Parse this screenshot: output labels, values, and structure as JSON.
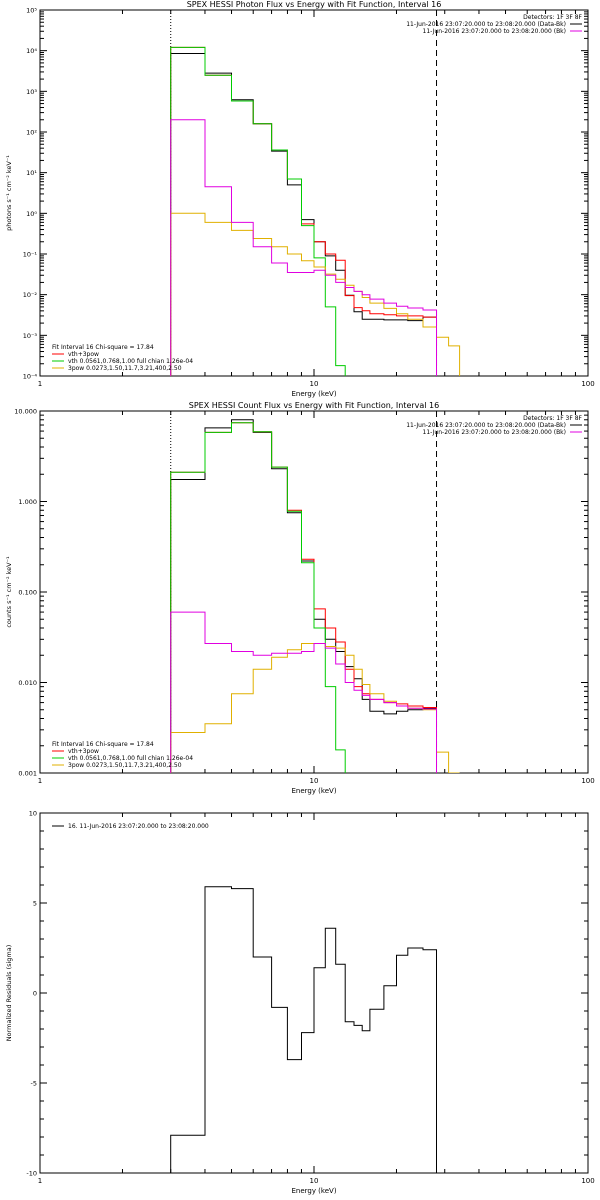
{
  "chart_data": [
    {
      "type": "line",
      "step": true,
      "title": "SPEX HESSI Photon Flux vs Energy with Fit Function, Interval 16",
      "xlabel": "Energy (keV)",
      "ylabel": "photons s⁻¹ cm⁻² keV⁻¹",
      "xscale": "log",
      "yscale": "log",
      "xlim": [
        1,
        100
      ],
      "ylim": [
        0.0001,
        100000
      ],
      "x_ticks": [
        {
          "v": 1,
          "label": "1"
        },
        {
          "v": 10,
          "label": "10"
        },
        {
          "v": 100,
          "label": "100"
        }
      ],
      "y_ticks": [
        {
          "v": 0.0001,
          "label": "10⁻⁴"
        },
        {
          "v": 0.001,
          "label": "10⁻³"
        },
        {
          "v": 0.01,
          "label": "10⁻²"
        },
        {
          "v": 0.1,
          "label": "10⁻¹"
        },
        {
          "v": 1,
          "label": "10⁰"
        },
        {
          "v": 10,
          "label": "10¹"
        },
        {
          "v": 100,
          "label": "10²"
        },
        {
          "v": 1000,
          "label": "10³"
        },
        {
          "v": 10000,
          "label": "10⁴"
        },
        {
          "v": 100000,
          "label": "10⁵"
        }
      ],
      "grid": false,
      "vlines": [
        {
          "x": 3.0,
          "style": "dotted"
        },
        {
          "x": 28.0,
          "style": "dashed"
        }
      ],
      "bin_edges": [
        3.0,
        4.0,
        5.0,
        6.0,
        7.0,
        8.0,
        9.0,
        10.0,
        11.0,
        12.0,
        13.0,
        14.0,
        15.0,
        16.0,
        18.0,
        20.0,
        22.0,
        25.0,
        28.0,
        31.0,
        34.0
      ],
      "series": [
        {
          "name": "Data",
          "color": "#000000",
          "values": [
            8500,
            2800,
            620,
            160,
            34,
            5,
            0.7,
            0.2,
            0.09,
            0.04,
            0.0097,
            0.0038,
            0.0025,
            0.0025,
            0.0024,
            0.0024,
            0.0023,
            0.0028
          ]
        },
        {
          "name": "vth+3pow",
          "color": "#ff0000",
          "values": [
            12000,
            2500,
            580,
            160,
            36,
            7.0,
            0.55,
            0.2,
            0.1,
            0.07,
            0.0095,
            0.0048,
            0.004,
            0.0034,
            0.0032,
            0.003,
            0.003,
            0.0028
          ]
        },
        {
          "name": "vth",
          "color": "#00cc00",
          "values": [
            12000,
            2500,
            580,
            160,
            36,
            7.0,
            0.5,
            0.08,
            0.005,
            0.00018
          ]
        },
        {
          "name": "3pow",
          "color": "#e0b000",
          "values": [
            1.0,
            0.6,
            0.38,
            0.24,
            0.15,
            0.1,
            0.068,
            0.048,
            0.032,
            0.024,
            0.017,
            0.012,
            0.0085,
            0.0062,
            0.0046,
            0.0034,
            0.0025,
            0.0016,
            0.0009,
            0.00055
          ]
        },
        {
          "name": "Bk",
          "color": "#e000e0",
          "values": [
            200,
            4.5,
            0.6,
            0.15,
            0.06,
            0.035,
            0.035,
            0.04,
            0.03,
            0.02,
            0.015,
            0.012,
            0.01,
            0.0078,
            0.0062,
            0.0052,
            0.0047,
            0.0042
          ]
        }
      ],
      "legend_top": {
        "heading": "Detectors: 1F 3F 8F",
        "entries": [
          {
            "text": "11-Jun-2016 23:07:20.000 to 23:08:20.000 (Data-Bk)",
            "color": "#000000"
          },
          {
            "text": "11-Jun-2016 23:07:20.000 to 23:08:20.000 (Bk)",
            "color": "#e000e0"
          }
        ]
      },
      "legend_bottom": {
        "heading": "Fit Interval 16   Chi-square = 17.84",
        "entries": [
          {
            "text": "vth+3pow",
            "color": "#ff0000"
          },
          {
            "text": "vth 0.0561,0.768,1.00  full chian 1.26e-04",
            "color": "#00cc00"
          },
          {
            "text": "3pow 0.0273,1.50,11.7,3.21,400,2.50",
            "color": "#e0b000"
          }
        ]
      }
    },
    {
      "type": "line",
      "step": true,
      "title": "SPEX HESSI Count Flux vs Energy with Fit Function, Interval 16",
      "xlabel": "Energy (keV)",
      "ylabel": "counts s⁻¹ cm⁻² keV⁻¹",
      "xscale": "log",
      "yscale": "log",
      "xlim": [
        1,
        100
      ],
      "ylim": [
        0.001,
        10
      ],
      "x_ticks": [
        {
          "v": 1,
          "label": "1"
        },
        {
          "v": 10,
          "label": "10"
        },
        {
          "v": 100,
          "label": "100"
        }
      ],
      "y_ticks": [
        {
          "v": 0.001,
          "label": "0.001"
        },
        {
          "v": 0.01,
          "label": "0.010"
        },
        {
          "v": 0.1,
          "label": "0.100"
        },
        {
          "v": 1,
          "label": "1.000"
        },
        {
          "v": 10,
          "label": "10.000"
        }
      ],
      "grid": false,
      "vlines": [
        {
          "x": 3.0,
          "style": "dotted"
        },
        {
          "x": 28.0,
          "style": "dashed"
        }
      ],
      "bin_edges": [
        3.0,
        4.0,
        5.0,
        6.0,
        7.0,
        8.0,
        9.0,
        10.0,
        11.0,
        12.0,
        13.0,
        14.0,
        15.0,
        16.0,
        18.0,
        20.0,
        22.0,
        25.0,
        28.0,
        31.0,
        34.0
      ],
      "series": [
        {
          "name": "Data",
          "color": "#000000",
          "values": [
            1.75,
            6.5,
            8.0,
            5.8,
            2.3,
            0.75,
            0.22,
            0.05,
            0.03,
            0.022,
            0.015,
            0.011,
            0.0065,
            0.0048,
            0.0045,
            0.0048,
            0.005,
            0.0052
          ]
        },
        {
          "name": "vth+3pow",
          "color": "#ff0000",
          "values": [
            2.1,
            5.8,
            7.4,
            5.9,
            2.4,
            0.8,
            0.23,
            0.065,
            0.04,
            0.028,
            0.014,
            0.009,
            0.0075,
            0.0065,
            0.006,
            0.0058,
            0.0055,
            0.0053
          ]
        },
        {
          "name": "vth",
          "color": "#00cc00",
          "values": [
            2.1,
            5.8,
            7.4,
            5.9,
            2.4,
            0.78,
            0.21,
            0.04,
            0.009,
            0.0018
          ]
        },
        {
          "name": "3pow",
          "color": "#e0b000",
          "values": [
            0.0028,
            0.0035,
            0.0075,
            0.014,
            0.019,
            0.023,
            0.027,
            0.027,
            0.025,
            0.024,
            0.02,
            0.014,
            0.0095,
            0.0075,
            0.0062,
            0.0055,
            0.0052,
            0.005,
            0.0017,
            0.001
          ]
        },
        {
          "name": "Bk",
          "color": "#e000e0",
          "values": [
            0.06,
            0.027,
            0.022,
            0.02,
            0.021,
            0.021,
            0.022,
            0.027,
            0.024,
            0.016,
            0.01,
            0.0082,
            0.0072,
            0.0065,
            0.006,
            0.0055,
            0.0052,
            0.0051
          ]
        }
      ],
      "legend_top": {
        "heading": "Detectors: 1F 3F 8F",
        "entries": [
          {
            "text": "11-Jun-2016 23:07:20.000 to 23:08:20.000 (Data-Bk)",
            "color": "#000000"
          },
          {
            "text": "11-Jun-2016 23:07:20.000 to 23:08:20.000 (Bk)",
            "color": "#e000e0"
          }
        ]
      },
      "legend_bottom": {
        "heading": "Fit Interval 16   Chi-square = 17.84",
        "entries": [
          {
            "text": "vth+3pow",
            "color": "#ff0000"
          },
          {
            "text": "vth 0.0561,0.768,1.00  full chian 1.26e-04",
            "color": "#00cc00"
          },
          {
            "text": "3pow 0.0273,1.50,11.7,3.21,400,2.50",
            "color": "#e0b000"
          }
        ]
      }
    },
    {
      "type": "line",
      "step": true,
      "title": "",
      "xlabel": "Energy (keV)",
      "ylabel": "Normalized Residuals (sigma)",
      "xscale": "log",
      "yscale": "linear",
      "xlim": [
        1,
        100
      ],
      "ylim": [
        -10,
        10
      ],
      "x_ticks": [
        {
          "v": 1,
          "label": "1"
        },
        {
          "v": 10,
          "label": "10"
        },
        {
          "v": 100,
          "label": "100"
        }
      ],
      "y_ticks": [
        {
          "v": -10,
          "label": "-10"
        },
        {
          "v": -5,
          "label": "-5"
        },
        {
          "v": 0,
          "label": "0"
        },
        {
          "v": 5,
          "label": "5"
        },
        {
          "v": 10,
          "label": "10"
        }
      ],
      "grid": false,
      "vlines": [],
      "bin_edges": [
        3.0,
        4.0,
        5.0,
        6.0,
        7.0,
        8.0,
        9.0,
        10.0,
        11.0,
        12.0,
        13.0,
        14.0,
        15.0,
        16.0,
        18.0,
        20.0,
        22.0,
        25.0,
        28.0
      ],
      "series": [
        {
          "name": "",
          "color": "#000000",
          "values": [
            -7.9,
            5.9,
            5.8,
            2.0,
            -0.8,
            -3.7,
            -2.2,
            1.4,
            3.6,
            1.6,
            -1.6,
            -1.8,
            -2.1,
            -0.9,
            0.4,
            2.1,
            2.5,
            2.4
          ],
          "closed": true
        }
      ],
      "legend_top": {
        "heading": "",
        "entries": [
          {
            "text": "16. 11-Jun-2016 23:07:20.000 to 23:08:20.000",
            "color": "#000000"
          }
        ]
      },
      "legend_bottom": {
        "heading": "",
        "entries": []
      }
    }
  ]
}
